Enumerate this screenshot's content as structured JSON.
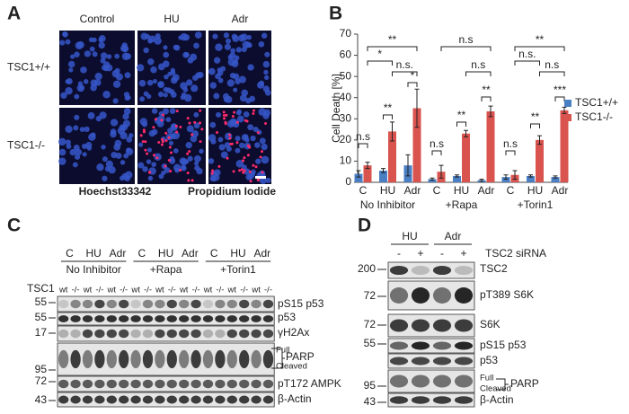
{
  "panel_a": {
    "label": "A",
    "columns": [
      "Control",
      "HU",
      "Adr"
    ],
    "rows": [
      "TSC1+/+",
      "TSC1-/-"
    ],
    "stains": [
      "Hoechst33342",
      "Propidium Iodide"
    ]
  },
  "chart_data": {
    "type": "bar",
    "panel_label": "B",
    "y_label": "Cell Death [%]",
    "categories": [
      "C",
      "HU",
      "Adr",
      "C",
      "HU",
      "Adr",
      "C",
      "HU",
      "Adr"
    ],
    "groups": [
      "No Inhibitor",
      "+Rapa",
      "+Torin1"
    ],
    "series": [
      {
        "name": "TSC1+/+",
        "color": "#4a7fc4",
        "values": [
          4,
          5.5,
          8,
          1.5,
          3,
          1,
          2.5,
          3,
          2.5
        ],
        "errors": [
          1.5,
          1,
          5,
          0.5,
          0.5,
          0.5,
          1,
          0.5,
          0.5
        ]
      },
      {
        "name": "TSC1-/-",
        "color": "#d9534f",
        "values": [
          8,
          24,
          35,
          5,
          23,
          33.5,
          3.5,
          20,
          34
        ],
        "errors": [
          1.5,
          4.5,
          9,
          3,
          1.5,
          2.5,
          2,
          2,
          1.5
        ]
      }
    ],
    "ylim": [
      0,
      70
    ],
    "yticks": [
      0,
      10,
      20,
      30,
      40,
      50,
      60,
      70
    ],
    "legend": "right",
    "annotations": [
      "n.s",
      "**",
      "*",
      "*",
      "**",
      "n.s.",
      "n.s",
      "**",
      "**",
      "n.s",
      "n.s",
      "n.s",
      "**",
      "***",
      "**",
      "n.s.",
      "n.s"
    ]
  },
  "panel_c": {
    "label": "C",
    "treatments": [
      "C",
      "HU",
      "Adr"
    ],
    "groups": [
      "No Inhibitor",
      "+Rapa",
      "+Torin1"
    ],
    "genotype_label": "TSC1",
    "lanes": [
      "wt",
      "-/-"
    ],
    "rows": [
      {
        "label": "pS15 p53",
        "marker": 55
      },
      {
        "label": "p53",
        "marker": 55
      },
      {
        "label": "γH2Ax",
        "marker": 17
      },
      {
        "label": "PARP",
        "marker": 95
      },
      {
        "label": "pT172 AMPK",
        "marker": 72
      },
      {
        "label": "β-Actin",
        "marker": 43
      }
    ],
    "parp_forms": [
      "Full",
      "Cleaved"
    ]
  },
  "panel_d": {
    "label": "D",
    "treatments": [
      "HU",
      "Adr"
    ],
    "sirna_label": "TSC2 siRNA",
    "sirna_states": [
      "-",
      "+"
    ],
    "rows": [
      {
        "label": "TSC2",
        "marker": 200
      },
      {
        "label": "pT389 S6K",
        "marker": 72
      },
      {
        "label": "S6K",
        "marker": 72
      },
      {
        "label": "pS15 p53",
        "marker": 55
      },
      {
        "label": "p53",
        "marker": null
      },
      {
        "label": "PARP",
        "marker": 95
      },
      {
        "label": "β-Actin",
        "marker": 43
      }
    ],
    "parp_forms": [
      "Full",
      "Cleaved"
    ]
  }
}
